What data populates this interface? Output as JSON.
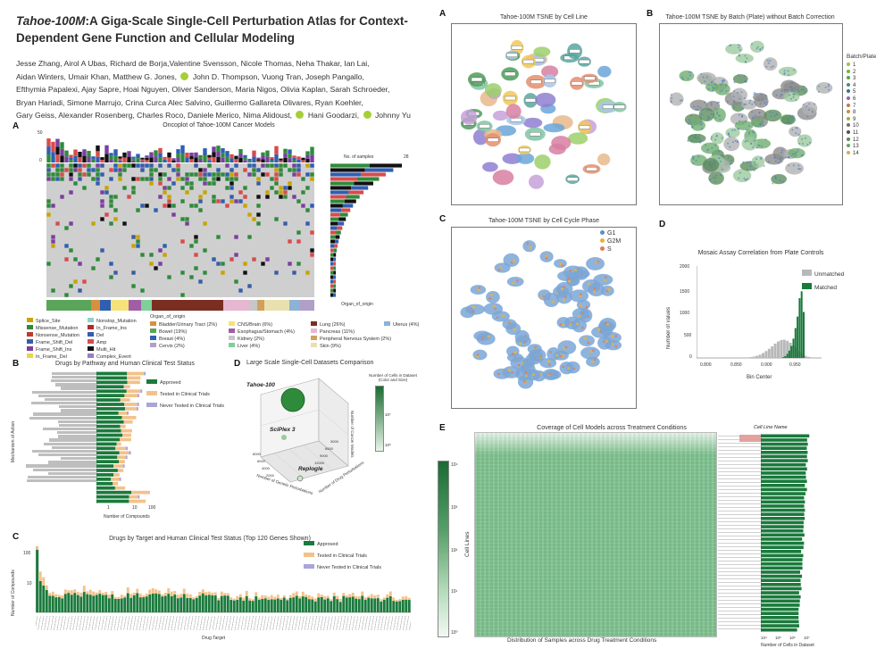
{
  "header": {
    "title_italic": "Tahoe-100M",
    "title_rest": ":A Giga-Scale Single-Cell Perturbation Atlas for Context-Dependent Gene Function and Cellular Modeling",
    "authors_1": "Jesse Zhang, Airol A Ubas, Richard de Borja,Valentine Svensson, Nicole Thomas, Neha Thakar, Ian Lai,",
    "authors_2": "Aidan Winters, Umair Khan, Matthew G. Jones,",
    "authors_2b": "John D. Thompson, Vuong Tran, Joseph Pangallo,",
    "authors_3": "Efthymia Papalexi, Ajay Sapre, Hoai Nguyen, Oliver Sanderson, Maria Nigos, Olivia Kaplan, Sarah Schroeder,",
    "authors_4": "Bryan Hariadi, Simone Marrujo, Crina Curca Alec Salvino, Guillermo Gallareta Olivares, Ryan Koehler,",
    "authors_5": "Gary Geiss, Alexander Rosenberg, Charles Roco, Daniele Merico, Nima Alidoust,",
    "authors_5b": "Hani Goodarzi,",
    "authors_5c": "Johnny Yu"
  },
  "panels": {
    "oncoplot": {
      "letter": "A",
      "title": "Oncoplot of Tahoe-100M Cancer Models",
      "axis_top": "50",
      "axis_zero": "0",
      "count_label": "No. of samples",
      "count_max": "28",
      "organ_label": "Organ_of_origin",
      "mutation_legend": [
        "Splice_Site",
        "Missense_Mutation",
        "Nonsense_Mutation",
        "Frame_Shift_Del",
        "Frame_Shift_Ins",
        "In_Frame_Del",
        "Nonstop_Mutation",
        "In_Frame_Ins",
        "Del",
        "Amp",
        "Multi_Hit",
        "Complex_Event"
      ],
      "organ_legend_title": "Organ_of_origin",
      "organ_legend": [
        "Bladder/Urinary Tract (2%)",
        "Bowel (19%)",
        "Breast (4%)",
        "Cervix (2%)",
        "CNS/Brain (6%)",
        "Esophagus/Stomach (4%)",
        "Kidney (2%)",
        "Liver (4%)",
        "Lung (26%)",
        "Pancreas (11%)",
        "Peripheral Nervous System (2%)",
        "Skin (9%)",
        "Uterus (4%)"
      ]
    },
    "pathway": {
      "letter": "B",
      "title": "Drugs by Pathway and Human Clinical Test Status",
      "ylabel": "Mechanism of Action",
      "xlabel": "Number of Compounds",
      "ticks": [
        "1",
        "10",
        "100"
      ],
      "legend": [
        "Approved",
        "Tested in Clinical Trials",
        "Never Tested in Clinical Trials"
      ]
    },
    "datasets": {
      "letter": "D",
      "title": "Large Scale Single-Cell Datasets Comparison",
      "label_tahoe": "Tahoe-100",
      "label_sciplex": "SciPlex 3",
      "label_replogle": "Replogle",
      "axis_x": "Number of Genetic Perturbations",
      "axis_y": "Number of Drug Perturbations",
      "axis_z": "Number of Cancer Models",
      "colorbar_title": "Number of Cells in Dataset (Color and Size)",
      "colorbar_top": "10⁷",
      "colorbar_bottom": "10⁵",
      "tick_x": [
        "2000",
        "4000",
        "6000",
        "8000"
      ],
      "tick_y": [
        "3000",
        "6000",
        "9000",
        "12000"
      ]
    },
    "target": {
      "letter": "C",
      "title": "Drugs by Target and Human Clinical Test Status (Top 120 Genes Shown)",
      "ylabel": "Number of Compounds",
      "xlabel": "Drug Target",
      "ticks": [
        "100",
        "10"
      ],
      "legend": [
        "Approved",
        "Tested in Clinical Trials",
        "Never Tested in Clinical Trials"
      ]
    },
    "tsne_cell_line": {
      "letter": "A",
      "title": "Tahoe-100M TSNE by Cell Line"
    },
    "tsne_batch": {
      "letter": "B",
      "title": "Tahoe-100M TSNE by Batch (Plate) without Batch Correction",
      "legend_title": "Batch/Plate",
      "legend": [
        "1",
        "2",
        "3",
        "4",
        "5",
        "6",
        "7",
        "8",
        "9",
        "10",
        "11",
        "12",
        "13",
        "14"
      ]
    },
    "tsne_phase": {
      "letter": "C",
      "title": "Tahoe-100M TSNE by Cell Cycle Phase",
      "legend": [
        "G1",
        "G2M",
        "S"
      ]
    },
    "mosaic": {
      "letter": "D",
      "title": "Mosaic Assay Correlation from Plate Controls",
      "ylabel": "Number of values",
      "xlabel": "Bin Center",
      "yticks": [
        "0",
        "500",
        "1000",
        "1500",
        "2000"
      ],
      "xticks": [
        "0.800",
        "0.850",
        "0.900",
        "0.950"
      ],
      "legend": [
        "Unmatched",
        "Matched"
      ]
    },
    "coverage": {
      "letter": "E",
      "title": "Coverage of Cell Models across Treatment Conditions",
      "ylabel": "Cell Lines",
      "xlabel": "Distribution of Samples across Drug Treatment Conditions",
      "colorbar": [
        "10⁴",
        "10³",
        "10²",
        "10¹",
        "10⁰"
      ],
      "bar_title": "Cell Line Name",
      "bar_xlabel": "Number of Cells in Dataset",
      "bar_ticks": [
        "10⁴",
        "10⁵",
        "10⁶",
        "10⁷"
      ]
    }
  },
  "colors": {
    "approved": "#1a7a3c",
    "tested": "#f3c28a",
    "never": "#a9a5d8",
    "g1": "#5b8fc9",
    "g2m": "#e6b43a",
    "s": "#e07a5f",
    "unmatched": "#b8b8b8",
    "matched": "#1a7a3c"
  }
}
